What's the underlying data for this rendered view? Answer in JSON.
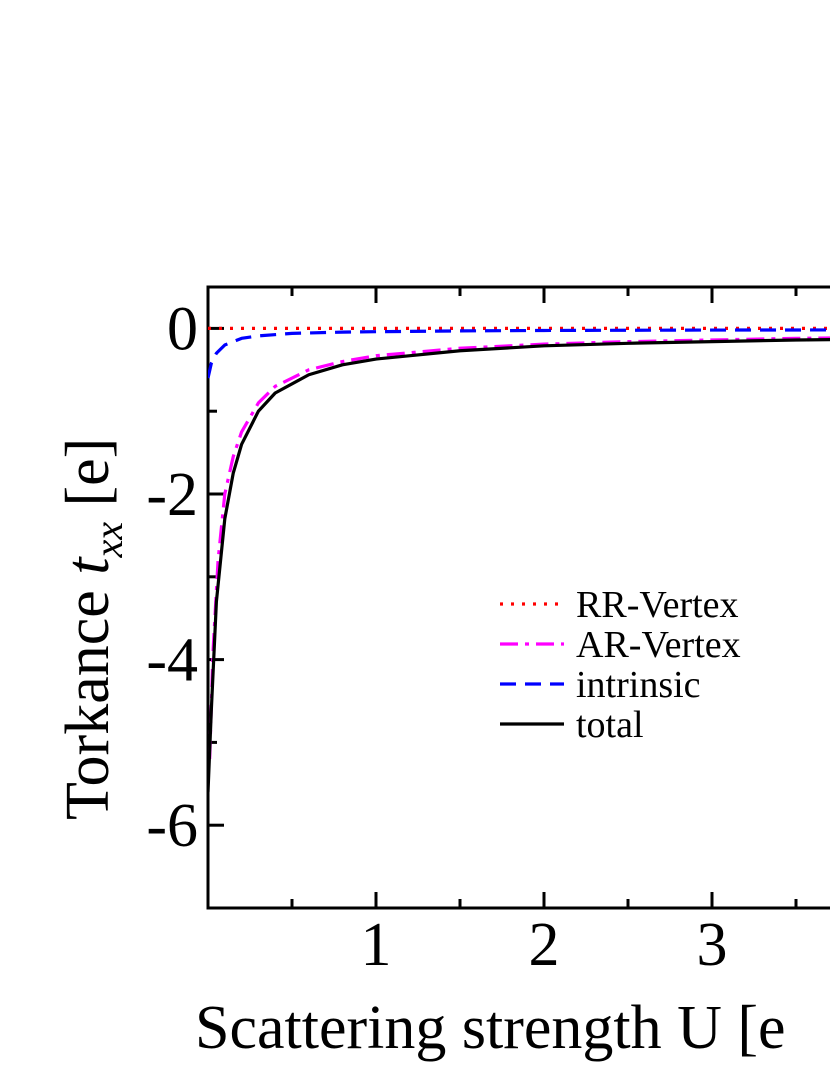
{
  "chart_data": {
    "type": "line",
    "xlabel": "Scattering strength U [e",
    "ylabel": {
      "prefix": "Torkance ",
      "var": "t",
      "sub": "xx",
      "unit": " [e]"
    },
    "xlim": [
      0.0,
      4.0
    ],
    "ylim": [
      -7.0,
      0.5
    ],
    "x_ticks": [
      {
        "value": 1,
        "label": "1"
      },
      {
        "value": 2,
        "label": "2"
      },
      {
        "value": 3,
        "label": "3"
      }
    ],
    "y_ticks": [
      {
        "value": 0,
        "label": "0"
      },
      {
        "value": -2,
        "label": "-2"
      },
      {
        "value": -4,
        "label": "-4"
      },
      {
        "value": -6,
        "label": "-6"
      }
    ],
    "legend_position": "center",
    "series": [
      {
        "name": "RR-Vertex",
        "color": "#ff0000",
        "style": "dotted",
        "x": [
          0.0,
          0.5,
          1.0,
          2.0,
          3.0,
          4.0
        ],
        "y": [
          0.0,
          0.0,
          0.0,
          0.0,
          0.0,
          0.0
        ]
      },
      {
        "name": "AR-Vertex",
        "color": "#ff00ff",
        "style": "dash-dot",
        "x": [
          0.01,
          0.03,
          0.06,
          0.1,
          0.15,
          0.2,
          0.3,
          0.4,
          0.6,
          0.8,
          1.0,
          1.5,
          2.0,
          2.5,
          3.0,
          3.5,
          4.0
        ],
        "y": [
          -5.2,
          -3.9,
          -2.8,
          -2.0,
          -1.55,
          -1.25,
          -0.9,
          -0.7,
          -0.5,
          -0.4,
          -0.33,
          -0.24,
          -0.19,
          -0.16,
          -0.14,
          -0.12,
          -0.11
        ]
      },
      {
        "name": "intrinsic",
        "color": "#0000ff",
        "style": "dashed",
        "x": [
          0.0,
          0.02,
          0.05,
          0.1,
          0.2,
          0.3,
          0.5,
          0.8,
          1.0,
          1.5,
          2.0,
          3.0,
          4.0
        ],
        "y": [
          -0.6,
          -0.42,
          -0.3,
          -0.2,
          -0.12,
          -0.09,
          -0.06,
          -0.045,
          -0.04,
          -0.03,
          -0.025,
          -0.02,
          -0.018
        ]
      },
      {
        "name": "total",
        "color": "#000000",
        "style": "solid",
        "x": [
          0.0,
          0.02,
          0.05,
          0.1,
          0.15,
          0.2,
          0.3,
          0.4,
          0.6,
          0.8,
          1.0,
          1.5,
          2.0,
          2.5,
          3.0,
          3.5,
          4.0
        ],
        "y": [
          -5.6,
          -4.6,
          -3.3,
          -2.3,
          -1.75,
          -1.4,
          -1.0,
          -0.78,
          -0.56,
          -0.44,
          -0.37,
          -0.27,
          -0.21,
          -0.18,
          -0.16,
          -0.14,
          -0.13
        ]
      }
    ]
  }
}
